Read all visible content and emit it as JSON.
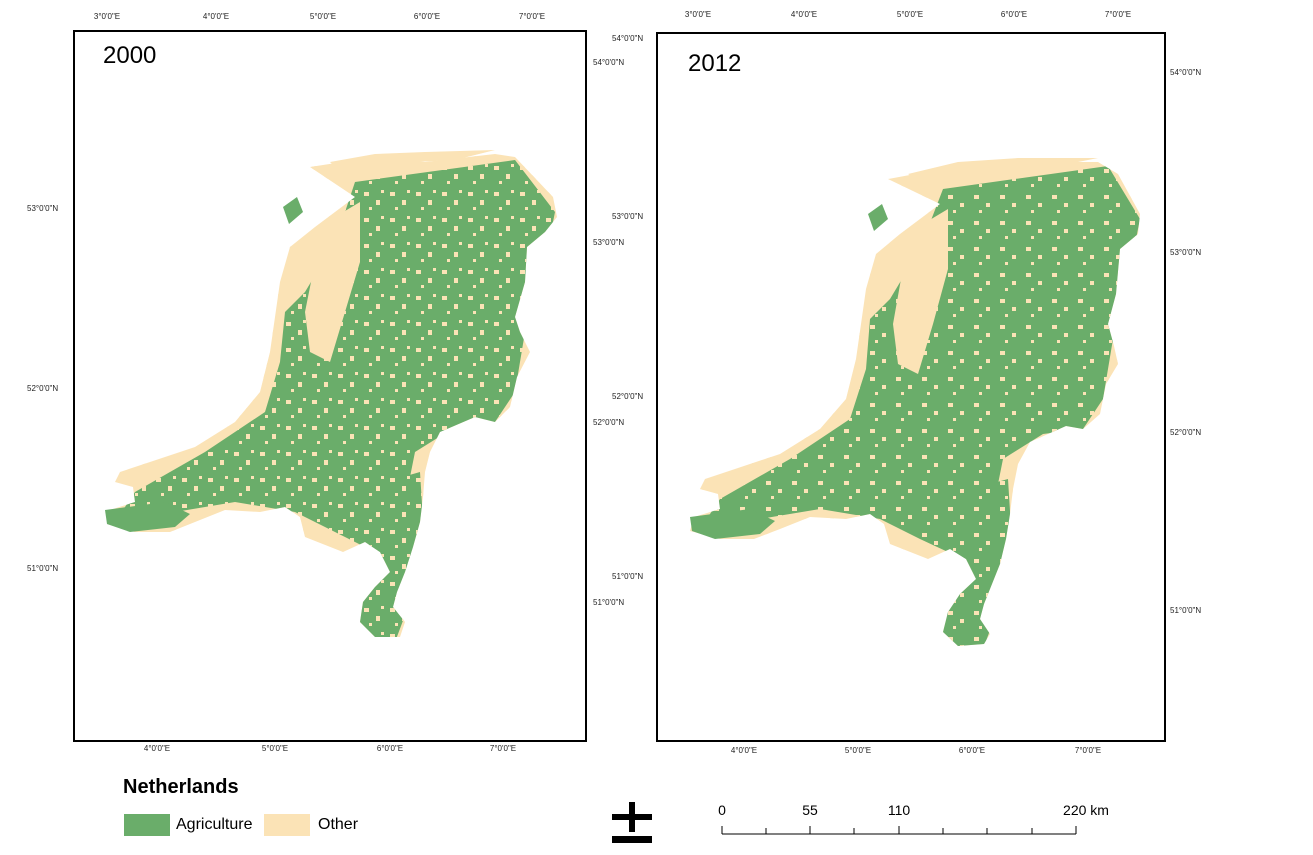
{
  "colors": {
    "agriculture": "#6aad6a",
    "other": "#fbe3b6",
    "water": "#ffffff",
    "frame": "#000000"
  },
  "maps": [
    {
      "year": "2000",
      "top_ticks": [
        "3°0'0\"E",
        "4°0'0\"E",
        "5°0'0\"E",
        "6°0'0\"E",
        "7°0'0\"E"
      ],
      "bottom_ticks": [
        "4°0'0\"E",
        "5°0'0\"E",
        "6°0'0\"E",
        "7°0'0\"E"
      ],
      "left_ticks": [
        "53°0'0\"N",
        "52°0'0\"N",
        "51°0'0\"N"
      ],
      "right_ticks": [
        "54°0'0\"N",
        "53°0'0\"N",
        "52°0'0\"N",
        "51°0'0\"N"
      ]
    },
    {
      "year": "2012",
      "top_ticks": [
        "3°0'0\"E",
        "4°0'0\"E",
        "5°0'0\"E",
        "6°0'0\"E",
        "7°0'0\"E"
      ],
      "bottom_ticks": [
        "4°0'0\"E",
        "5°0'0\"E",
        "6°0'0\"E",
        "7°0'0\"E"
      ],
      "left_ticks": [
        "54°0'0\"N",
        "53°0'0\"N",
        "52°0'0\"N",
        "51°0'0\"N"
      ],
      "right_ticks": [
        "54°0'0\"N",
        "53°0'0\"N",
        "52°0'0\"N",
        "51°0'0\"N"
      ]
    }
  ],
  "legend": {
    "title": "Netherlands",
    "items": [
      {
        "label": "Agriculture",
        "color": "#6aad6a"
      },
      {
        "label": "Other",
        "color": "#fbe3b6"
      }
    ]
  },
  "north_arrow_icon": "north-arrow-icon",
  "scale_bar": {
    "labels": [
      "0",
      "55",
      "110",
      "220 km"
    ]
  }
}
